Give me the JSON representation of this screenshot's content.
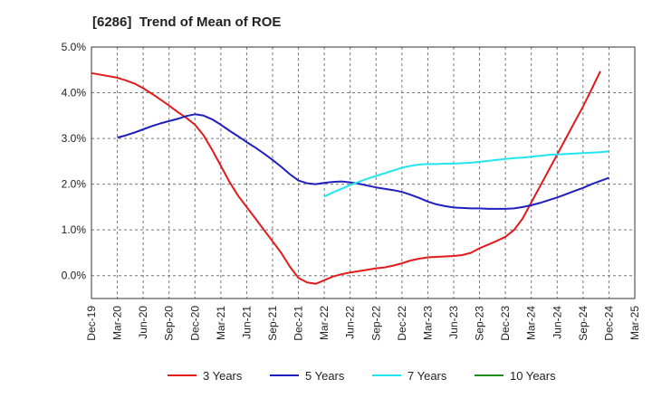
{
  "chart_data": {
    "type": "line",
    "title": "[6286]  Trend of Mean of ROE",
    "xlabel": "",
    "ylabel": "",
    "x_labels": [
      "Dec-19",
      "Mar-20",
      "Jun-20",
      "Sep-20",
      "Dec-20",
      "Mar-21",
      "Jun-21",
      "Sep-21",
      "Dec-21",
      "Mar-22",
      "Jun-22",
      "Sep-22",
      "Dec-22",
      "Mar-23",
      "Jun-23",
      "Sep-23",
      "Dec-23",
      "Mar-24",
      "Jun-24",
      "Sep-24",
      "Dec-24",
      "Mar-25"
    ],
    "y_ticks": [
      "5.0%",
      "4.0%",
      "3.0%",
      "2.0%",
      "1.0%",
      "0.0%"
    ],
    "ylim": [
      -0.5,
      5.0
    ],
    "grid": "horizontal dashed",
    "legend_position": "bottom",
    "series": [
      {
        "name": "3 Years",
        "color": "#e31a1c",
        "points": [
          [
            "Dec-19",
            4.43
          ],
          [
            "Mar-20",
            4.33
          ],
          [
            "Apr-20",
            4.27
          ],
          [
            "May-20",
            4.2
          ],
          [
            "Jun-20",
            4.1
          ],
          [
            "Jul-20",
            3.98
          ],
          [
            "Aug-20",
            3.85
          ],
          [
            "Sep-20",
            3.72
          ],
          [
            "Oct-20",
            3.58
          ],
          [
            "Nov-20",
            3.45
          ],
          [
            "Dec-20",
            3.3
          ],
          [
            "Jan-21",
            3.07
          ],
          [
            "Feb-21",
            2.75
          ],
          [
            "Mar-21",
            2.4
          ],
          [
            "Apr-21",
            2.05
          ],
          [
            "May-21",
            1.75
          ],
          [
            "Jun-21",
            1.5
          ],
          [
            "Jul-21",
            1.25
          ],
          [
            "Aug-21",
            1.0
          ],
          [
            "Sep-21",
            0.75
          ],
          [
            "Oct-21",
            0.5
          ],
          [
            "Nov-21",
            0.2
          ],
          [
            "Dec-21",
            -0.05
          ],
          [
            "Jan-22",
            -0.15
          ],
          [
            "Feb-22",
            -0.18
          ],
          [
            "Mar-22",
            -0.1
          ],
          [
            "Apr-22",
            -0.02
          ],
          [
            "May-22",
            0.03
          ],
          [
            "Jun-22",
            0.07
          ],
          [
            "Jul-22",
            0.1
          ],
          [
            "Aug-22",
            0.13
          ],
          [
            "Sep-22",
            0.16
          ],
          [
            "Oct-22",
            0.18
          ],
          [
            "Nov-22",
            0.22
          ],
          [
            "Dec-22",
            0.27
          ],
          [
            "Jan-23",
            0.33
          ],
          [
            "Feb-23",
            0.37
          ],
          [
            "Mar-23",
            0.4
          ],
          [
            "Apr-23",
            0.41
          ],
          [
            "May-23",
            0.42
          ],
          [
            "Jun-23",
            0.43
          ],
          [
            "Jul-23",
            0.45
          ],
          [
            "Aug-23",
            0.5
          ],
          [
            "Sep-23",
            0.6
          ],
          [
            "Oct-23",
            0.68
          ],
          [
            "Nov-23",
            0.76
          ],
          [
            "Dec-23",
            0.85
          ],
          [
            "Jan-24",
            1.0
          ],
          [
            "Feb-24",
            1.25
          ],
          [
            "Mar-24",
            1.6
          ],
          [
            "Apr-24",
            1.95
          ],
          [
            "May-24",
            2.3
          ],
          [
            "Jun-24",
            2.65
          ],
          [
            "Jul-24",
            3.0
          ],
          [
            "Aug-24",
            3.35
          ],
          [
            "Sep-24",
            3.7
          ],
          [
            "Oct-24",
            4.08
          ],
          [
            "Nov-24",
            4.47
          ]
        ]
      },
      {
        "name": "5 Years",
        "color": "#1f1fbf",
        "points": [
          [
            "Mar-20",
            3.02
          ],
          [
            "Apr-20",
            3.07
          ],
          [
            "May-20",
            3.13
          ],
          [
            "Jun-20",
            3.2
          ],
          [
            "Jul-20",
            3.27
          ],
          [
            "Aug-20",
            3.33
          ],
          [
            "Sep-20",
            3.38
          ],
          [
            "Oct-20",
            3.43
          ],
          [
            "Nov-20",
            3.49
          ],
          [
            "Dec-20",
            3.53
          ],
          [
            "Jan-21",
            3.5
          ],
          [
            "Feb-21",
            3.42
          ],
          [
            "Mar-21",
            3.3
          ],
          [
            "Apr-21",
            3.17
          ],
          [
            "May-21",
            3.05
          ],
          [
            "Jun-21",
            2.92
          ],
          [
            "Jul-21",
            2.8
          ],
          [
            "Aug-21",
            2.67
          ],
          [
            "Sep-21",
            2.53
          ],
          [
            "Oct-21",
            2.38
          ],
          [
            "Nov-21",
            2.22
          ],
          [
            "Dec-21",
            2.08
          ],
          [
            "Jan-22",
            2.02
          ],
          [
            "Feb-22",
            2.0
          ],
          [
            "Mar-22",
            2.03
          ],
          [
            "Apr-22",
            2.05
          ],
          [
            "May-22",
            2.06
          ],
          [
            "Jun-22",
            2.04
          ],
          [
            "Jul-22",
            2.01
          ],
          [
            "Aug-22",
            1.97
          ],
          [
            "Sep-22",
            1.93
          ],
          [
            "Oct-22",
            1.9
          ],
          [
            "Nov-22",
            1.87
          ],
          [
            "Dec-22",
            1.83
          ],
          [
            "Jan-23",
            1.77
          ],
          [
            "Feb-23",
            1.7
          ],
          [
            "Mar-23",
            1.62
          ],
          [
            "Apr-23",
            1.56
          ],
          [
            "May-23",
            1.52
          ],
          [
            "Jun-23",
            1.49
          ],
          [
            "Jul-23",
            1.48
          ],
          [
            "Aug-23",
            1.47
          ],
          [
            "Sep-23",
            1.47
          ],
          [
            "Oct-23",
            1.46
          ],
          [
            "Nov-23",
            1.46
          ],
          [
            "Dec-23",
            1.46
          ],
          [
            "Jan-24",
            1.47
          ],
          [
            "Feb-24",
            1.5
          ],
          [
            "Mar-24",
            1.54
          ],
          [
            "Apr-24",
            1.59
          ],
          [
            "May-24",
            1.65
          ],
          [
            "Jun-24",
            1.71
          ],
          [
            "Jul-24",
            1.78
          ],
          [
            "Aug-24",
            1.85
          ],
          [
            "Sep-24",
            1.92
          ],
          [
            "Oct-24",
            2.0
          ],
          [
            "Nov-24",
            2.07
          ],
          [
            "Dec-24",
            2.14
          ]
        ]
      },
      {
        "name": "7 Years",
        "color": "#22e5f0",
        "points": [
          [
            "Mar-22",
            1.73
          ],
          [
            "Apr-22",
            1.82
          ],
          [
            "May-22",
            1.9
          ],
          [
            "Jun-22",
            1.98
          ],
          [
            "Jul-22",
            2.05
          ],
          [
            "Aug-22",
            2.12
          ],
          [
            "Sep-22",
            2.18
          ],
          [
            "Oct-22",
            2.24
          ],
          [
            "Nov-22",
            2.3
          ],
          [
            "Dec-22",
            2.36
          ],
          [
            "Jan-23",
            2.4
          ],
          [
            "Feb-23",
            2.43
          ],
          [
            "Mar-23",
            2.44
          ],
          [
            "Apr-23",
            2.44
          ],
          [
            "May-23",
            2.45
          ],
          [
            "Jun-23",
            2.45
          ],
          [
            "Jul-23",
            2.46
          ],
          [
            "Aug-23",
            2.47
          ],
          [
            "Sep-23",
            2.49
          ],
          [
            "Oct-23",
            2.51
          ],
          [
            "Nov-23",
            2.53
          ],
          [
            "Dec-23",
            2.55
          ],
          [
            "Jan-24",
            2.57
          ],
          [
            "Feb-24",
            2.58
          ],
          [
            "Mar-24",
            2.6
          ],
          [
            "Apr-24",
            2.62
          ],
          [
            "May-24",
            2.64
          ],
          [
            "Jun-24",
            2.65
          ],
          [
            "Jul-24",
            2.66
          ],
          [
            "Aug-24",
            2.67
          ],
          [
            "Sep-24",
            2.68
          ],
          [
            "Oct-24",
            2.69
          ],
          [
            "Nov-24",
            2.7
          ],
          [
            "Dec-24",
            2.72
          ]
        ]
      },
      {
        "name": "10 Years",
        "color": "#1a8f1a",
        "points": []
      }
    ]
  }
}
